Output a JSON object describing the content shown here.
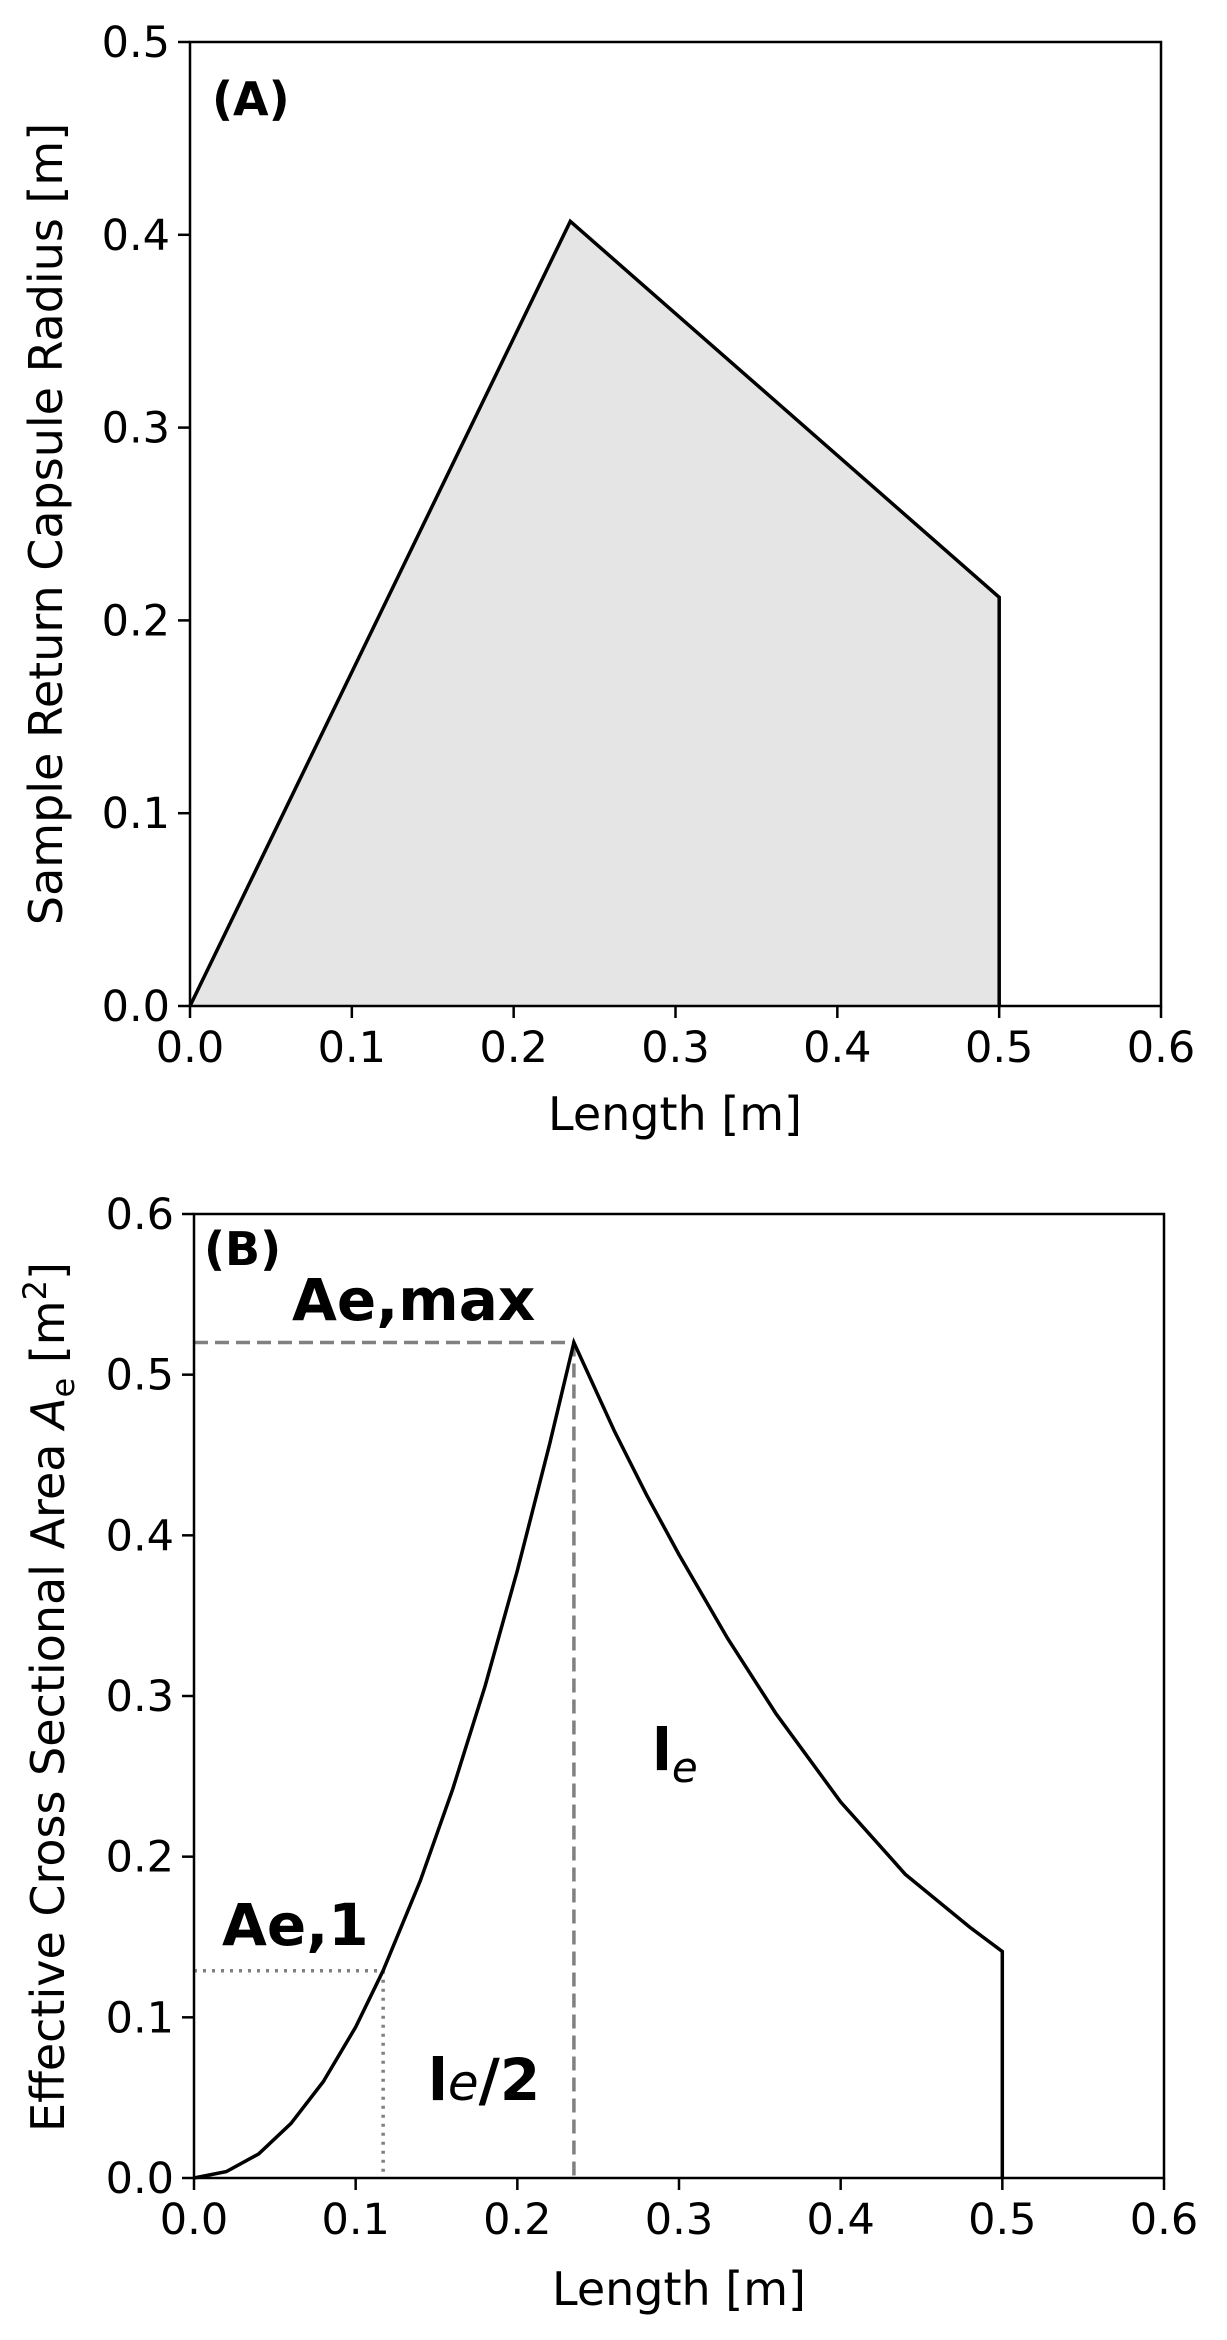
{
  "chart_data": [
    {
      "type": "area",
      "panel_label": "(A)",
      "xlabel": "Length [m]",
      "ylabel": "Sample Return Capsule Radius [m]",
      "xlim": [
        0.0,
        0.6
      ],
      "ylim": [
        0.0,
        0.5
      ],
      "xticks": [
        "0.0",
        "0.1",
        "0.2",
        "0.3",
        "0.4",
        "0.5",
        "0.6"
      ],
      "yticks": [
        "0.0",
        "0.1",
        "0.2",
        "0.3",
        "0.4",
        "0.5"
      ],
      "grid": false,
      "fill_color": "#e5e5e5",
      "line_color": "#000000",
      "x": [
        0.0,
        0.235,
        0.5,
        0.5
      ],
      "y": [
        0.0,
        0.407,
        0.212,
        0.0
      ]
    },
    {
      "type": "line",
      "panel_label": "(B)",
      "xlabel": "Length [m]",
      "ylabel_main": "Effective Cross Sectional Area ",
      "ylabel_symbol": "A",
      "ylabel_sub": "e",
      "ylabel_unit": " [m",
      "ylabel_exp": "2",
      "ylabel_close": "]",
      "xlim": [
        0.0,
        0.6
      ],
      "ylim": [
        0.0,
        0.6
      ],
      "xticks": [
        "0.0",
        "0.1",
        "0.2",
        "0.3",
        "0.4",
        "0.5",
        "0.6"
      ],
      "yticks": [
        "0.0",
        "0.1",
        "0.2",
        "0.3",
        "0.4",
        "0.5",
        "0.6"
      ],
      "grid": false,
      "line_color": "#000000",
      "guide_color": "#808080",
      "series": [
        {
          "x": [
            0.0,
            0.02,
            0.04,
            0.06,
            0.08,
            0.1,
            0.117,
            0.14,
            0.16,
            0.18,
            0.2,
            0.22,
            0.235,
            0.26,
            0.28,
            0.3,
            0.33,
            0.36,
            0.4,
            0.44,
            0.48,
            0.5,
            0.5
          ],
          "y": [
            0.0,
            0.004,
            0.015,
            0.034,
            0.06,
            0.094,
            0.129,
            0.185,
            0.242,
            0.306,
            0.378,
            0.457,
            0.52,
            0.465,
            0.425,
            0.388,
            0.336,
            0.289,
            0.234,
            0.189,
            0.156,
            0.141,
            0.0
          ]
        }
      ],
      "guides": {
        "ae_max": {
          "x": 0.235,
          "y": 0.52,
          "style": "dashed"
        },
        "ae_1": {
          "x": 0.117,
          "y": 0.129,
          "style": "dotted"
        }
      },
      "annotations": {
        "ae_max": "Ae,max",
        "ae_1": "Ae,1",
        "le": "l",
        "le_sub": "e",
        "le_half": "l",
        "le_half_sub": "e",
        "le_half_suffix": "/2"
      }
    }
  ]
}
